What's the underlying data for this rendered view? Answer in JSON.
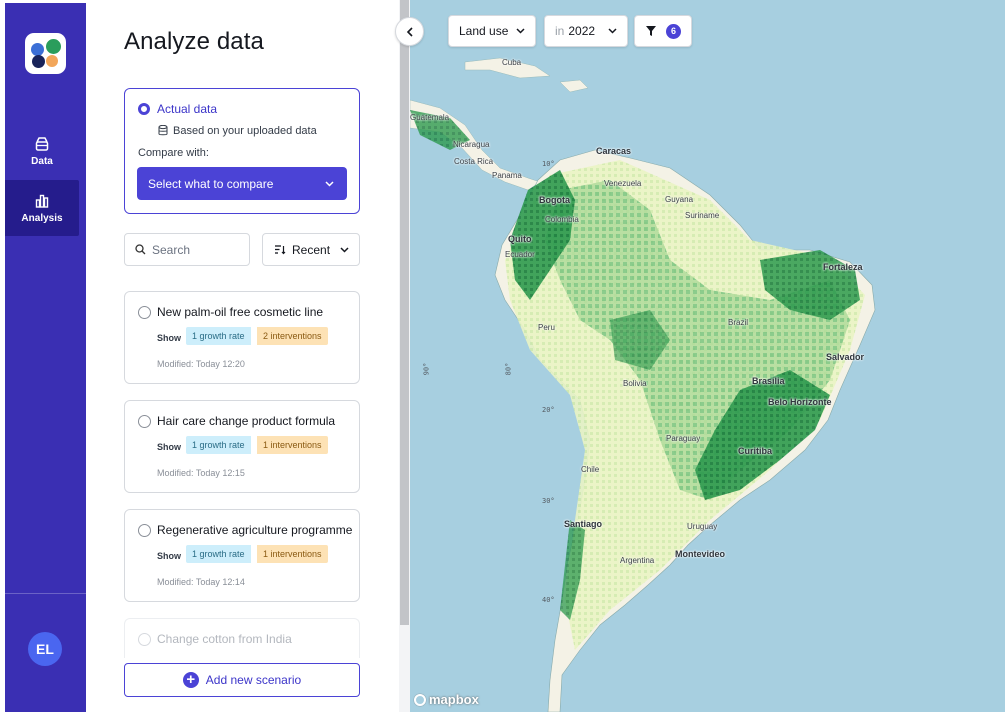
{
  "nav": {
    "items": [
      {
        "label": "Data",
        "icon": "database-icon"
      },
      {
        "label": "Analysis",
        "icon": "bar-chart-icon"
      }
    ],
    "avatar_initials": "EL",
    "logo_colors": [
      "#2a9d5c",
      "#3b6fd6",
      "#19245a",
      "#f2a65a"
    ]
  },
  "panel": {
    "title": "Analyze data",
    "actual": {
      "label": "Actual data",
      "sublabel": "Based on your uploaded data",
      "compare_label": "Compare with:",
      "compare_select": "Select what to compare"
    },
    "search": {
      "placeholder": "Search"
    },
    "sort": {
      "label": "Recent"
    },
    "scenarios": [
      {
        "name": "New palm-oil free cosmetic line",
        "show": "Show",
        "growth": "1 growth rate",
        "interventions": "2 interventions",
        "modified": "Modified: Today 12:20"
      },
      {
        "name": "Hair care change product formula",
        "show": "Show",
        "growth": "1 growth rate",
        "interventions": "1 interventions",
        "modified": "Modified: Today 12:15"
      },
      {
        "name": "Regenerative agriculture programme",
        "show": "Show",
        "growth": "1 growth rate",
        "interventions": "1 interventions",
        "modified": "Modified: Today 12:14"
      },
      {
        "name": "Change cotton from India"
      }
    ],
    "add_button": "Add new scenario"
  },
  "map": {
    "layer": "Land use",
    "year_prefix": "in",
    "year": "2022",
    "filter_count": "6",
    "attribution": "mapbox",
    "labels": {
      "cuba": "Cuba",
      "guatemala": "Guatemala",
      "nicaragua": "Nicaragua",
      "costa_rica": "Costa Rica",
      "panama": "Panama",
      "caracas": "Caracas",
      "venezuela": "Venezuela",
      "guyana": "Guyana",
      "suriname": "Suriname",
      "bogota": "Bogota",
      "colombia": "Colombia",
      "quito": "Quito",
      "ecuador": "Ecuador",
      "peru": "Peru",
      "brazil": "Brazil",
      "fortaleza": "Fortaleza",
      "salvador": "Salvador",
      "bolivia": "Bolivia",
      "brasilia": "Brasília",
      "belo_horizonte": "Belo Horizonte",
      "paraguay": "Paraguay",
      "curitiba": "Curitiba",
      "chile": "Chile",
      "santiago": "Santiago",
      "uruguay": "Uruguay",
      "montevideo": "Montevideo",
      "argentina": "Argentina"
    },
    "graticule": {
      "lat_10": "10°",
      "lat_20": "20°",
      "lat_30": "30°",
      "lat_40": "40°",
      "lon_90": "90°",
      "lon_80": "80°"
    },
    "colors": {
      "ocean": "#a7cfe0",
      "land": "#f4f2e6",
      "veg_light": "#e8f3c0",
      "veg_mid": "#9fd38e",
      "veg_dark": "#2e9a4f",
      "veg_deep": "#0b6b35"
    }
  }
}
